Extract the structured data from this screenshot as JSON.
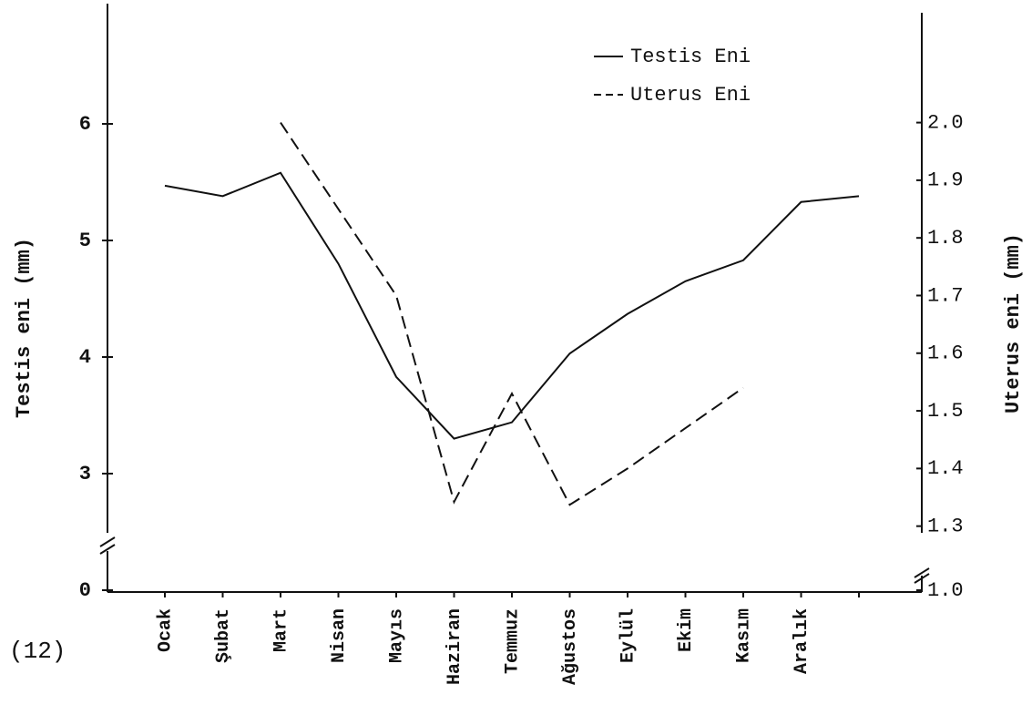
{
  "chart_data": {
    "type": "line",
    "annotation": "(12)",
    "y_label": "Testis eni (mm)",
    "y2_label": "Uterus eni (mm)",
    "categories": [
      "Ocak",
      "Şubat",
      "Mart",
      "Nisan",
      "Mayıs",
      "Haziran",
      "Temmuz",
      "Ağustos",
      "Eylül",
      "Ekim",
      "Kasım",
      "Aralık",
      null
    ],
    "ylim": [
      0,
      7
    ],
    "ybreak": [
      0,
      2.5
    ],
    "yticks": [
      0,
      3,
      4,
      5,
      6
    ],
    "y2lim": [
      1.0,
      2.2
    ],
    "y2break": [
      1.0,
      1.29
    ],
    "y2ticks": [
      {
        "value": 1.0,
        "label": "1.0"
      },
      1.3,
      1.4,
      1.5,
      1.6,
      1.7,
      1.8,
      1.9,
      {
        "value": 2.0,
        "label": "2.0"
      }
    ],
    "legend": "upper right",
    "series": [
      {
        "name": "Testis Eni",
        "color": "#111111",
        "style": "solid",
        "values": [
          5.47,
          5.38,
          5.58,
          4.8,
          3.83,
          3.3,
          3.44,
          4.03,
          4.37,
          4.65,
          4.83,
          5.33,
          5.38
        ]
      },
      {
        "name": "Uterus Eni",
        "color": "#111111",
        "style": "dashed",
        "axis": "y2",
        "values": [
          null,
          null,
          2.0,
          1.85,
          1.7,
          1.342,
          1.53,
          1.337,
          1.4,
          1.47,
          1.54,
          null,
          null
        ]
      }
    ]
  }
}
